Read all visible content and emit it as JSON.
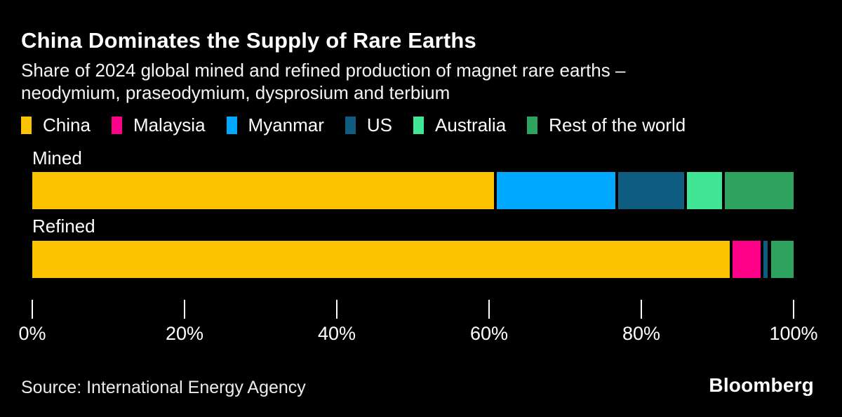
{
  "header": {
    "title": "China Dominates the Supply of Rare Earths",
    "subtitle_line1": "Share of 2024 global mined and refined production of magnet rare earths –",
    "subtitle_line2": "neodymium, praseodymium, dysprosium and terbium"
  },
  "footer": {
    "source": "Source: International Energy Agency",
    "brand": "Bloomberg"
  },
  "colors": {
    "background": "#000000",
    "text": "#FFFFFF"
  },
  "chart_data": {
    "type": "bar",
    "orientation": "horizontal",
    "stacked": true,
    "unit": "percent",
    "title": "China Dominates the Supply of Rare Earths",
    "subtitle": "Share of 2024 global mined and refined production of magnet rare earths – neodymium, praseodymium, dysprosium and terbium",
    "categories": [
      "Mined",
      "Refined"
    ],
    "series": [
      {
        "name": "China",
        "color": "#FCC303",
        "values": [
          61,
          92
        ]
      },
      {
        "name": "Malaysia",
        "color": "#FF0088",
        "values": [
          0,
          4
        ]
      },
      {
        "name": "Myanmar",
        "color": "#00A9FF",
        "values": [
          16,
          0
        ]
      },
      {
        "name": "US",
        "color": "#0E5C80",
        "values": [
          9,
          1
        ]
      },
      {
        "name": "Australia",
        "color": "#40E595",
        "values": [
          5,
          0
        ]
      },
      {
        "name": "Rest of the world",
        "color": "#2EA35F",
        "values": [
          9,
          3
        ]
      }
    ],
    "x_axis": {
      "min": 0,
      "max": 100,
      "tick_labels": [
        "0%",
        "20%",
        "40%",
        "60%",
        "80%",
        "100%"
      ]
    },
    "legend_position": "top",
    "grid": false,
    "source": "International Energy Agency"
  }
}
